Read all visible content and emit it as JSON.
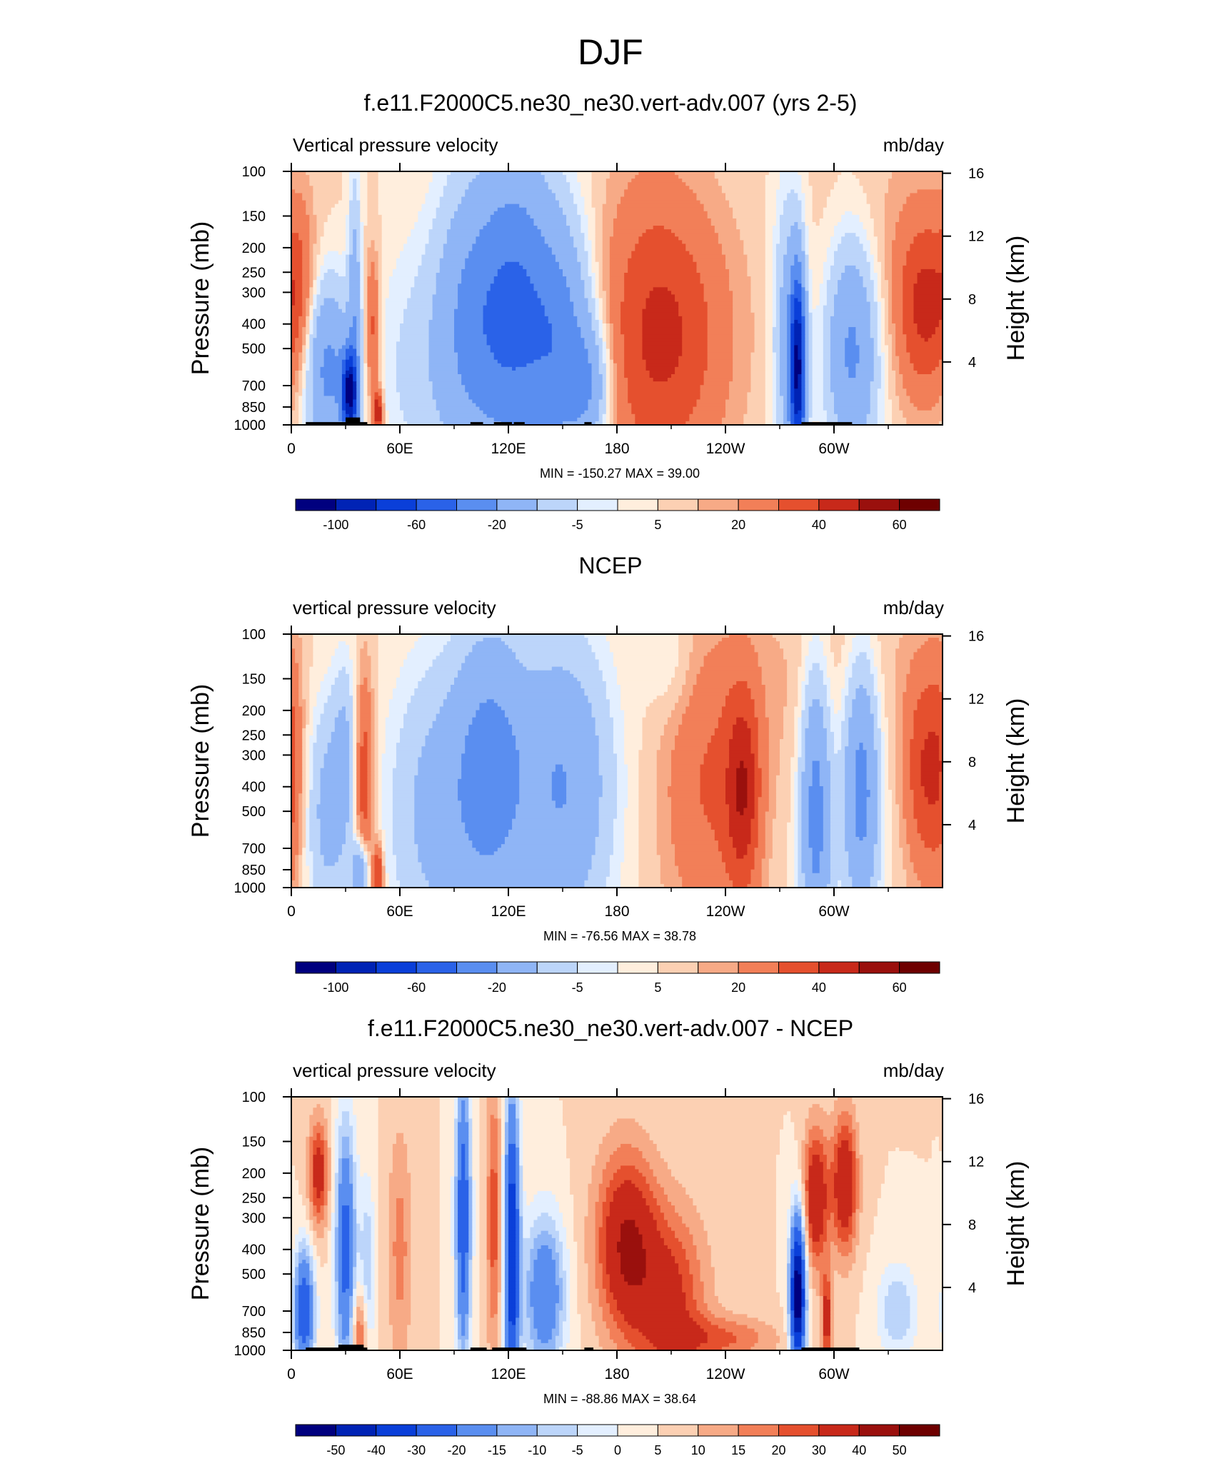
{
  "figure": {
    "title": "DJF",
    "colors": {
      "model_obs_levels": [
        "#00007f",
        "#0023b5",
        "#0a3fd9",
        "#2a62e8",
        "#5a8ef0",
        "#8fb5f6",
        "#bcd5fa",
        "#e3efff",
        "#ffeedd",
        "#fcd0b3",
        "#f7aa86",
        "#f27f58",
        "#e5502e",
        "#c8291a",
        "#9a100d",
        "#6e0000"
      ],
      "diff_levels": [
        "#00007f",
        "#0023b5",
        "#0a3fd9",
        "#2a62e8",
        "#5a8ef0",
        "#8fb5f6",
        "#bcd5fa",
        "#e3efff",
        "#ffeedd",
        "#fcd0b3",
        "#f7aa86",
        "#f27f58",
        "#e5502e",
        "#c8291a",
        "#9a100d",
        "#6e0000"
      ],
      "topography": "#000000"
    }
  },
  "panels": [
    {
      "title": "f.e11.F2000C5.ne30_ne30.vert-adv.007 (yrs 2-5)",
      "left_label": "Vertical pressure velocity",
      "right_label": "mb/day",
      "stats": "MIN = -150.27  MAX =  39.00",
      "colorbar_labels": [
        "-100",
        "-60",
        "-20",
        "-5",
        "5",
        "20",
        "40",
        "60"
      ]
    },
    {
      "title": "NCEP",
      "left_label": "vertical pressure velocity",
      "right_label": "mb/day",
      "stats": "MIN = -76.56  MAX =  38.78",
      "colorbar_labels": [
        "-100",
        "-60",
        "-20",
        "-5",
        "5",
        "20",
        "40",
        "60"
      ]
    },
    {
      "title": "f.e11.F2000C5.ne30_ne30.vert-adv.007 - NCEP",
      "left_label": "vertical pressure velocity",
      "right_label": "mb/day",
      "stats": "MIN = -88.86  MAX =  38.64",
      "colorbar_labels": [
        "-50",
        "-40",
        "-30",
        "-20",
        "-15",
        "-10",
        "-5",
        "0",
        "5",
        "10",
        "15",
        "20",
        "30",
        "40",
        "50"
      ]
    }
  ],
  "chart_data": [
    {
      "type": "heatmap",
      "title": "f.e11.F2000C5.ne30_ne30.vert-adv.007 (yrs 2-5)",
      "subtitle_left": "Vertical pressure velocity",
      "units": "mb/day",
      "xlabel": "",
      "x_ticks": [
        "0",
        "60E",
        "120E",
        "180",
        "120W",
        "60W"
      ],
      "x_tick_values": [
        0,
        60,
        120,
        180,
        240,
        300
      ],
      "xlim": [
        0,
        360
      ],
      "ylabel": "Pressure (mb)",
      "y_ticks": [
        100,
        150,
        200,
        250,
        300,
        400,
        500,
        700,
        850,
        1000
      ],
      "ylim": [
        1000,
        100
      ],
      "y_scale": "log",
      "y2label": "Height (km)",
      "y2_ticks": [
        16,
        12,
        8,
        4
      ],
      "min": -150.27,
      "max": 39.0,
      "levels": [
        -120,
        -100,
        -80,
        -60,
        -40,
        -20,
        -10,
        -5,
        0,
        5,
        10,
        20,
        30,
        40,
        50,
        60
      ],
      "features": [
        {
          "lon": 20,
          "p": 600,
          "v": -45,
          "wl": 9,
          "wp": 0.55
        },
        {
          "lon": 32,
          "p": 750,
          "v": -110,
          "wl": 3,
          "wp": 0.25
        },
        {
          "lon": 35,
          "p": 400,
          "v": -30,
          "wl": 2.5,
          "wp": 0.9
        },
        {
          "lon": 45,
          "p": 420,
          "v": 25,
          "wl": 3,
          "wp": 0.5
        },
        {
          "lon": 48,
          "p": 900,
          "v": 40,
          "wl": 2,
          "wp": 0.15
        },
        {
          "lon": 5,
          "p": 300,
          "v": 15,
          "wl": 6,
          "wp": 0.6
        },
        {
          "lon": 70,
          "p": 600,
          "v": -12,
          "wl": 18,
          "wp": 0.8
        },
        {
          "lon": 100,
          "p": 400,
          "v": -40,
          "wl": 14,
          "wp": 0.9
        },
        {
          "lon": 125,
          "p": 350,
          "v": -55,
          "wl": 14,
          "wp": 1.0
        },
        {
          "lon": 150,
          "p": 500,
          "v": -45,
          "wl": 12,
          "wp": 0.8
        },
        {
          "lon": 165,
          "p": 700,
          "v": -30,
          "wl": 8,
          "wp": 0.4
        },
        {
          "lon": 210,
          "p": 450,
          "v": 25,
          "wl": 25,
          "wp": 0.9
        },
        {
          "lon": 195,
          "p": 400,
          "v": 10,
          "wl": 20,
          "wp": 1.2
        },
        {
          "lon": 280,
          "p": 600,
          "v": -110,
          "wl": 3,
          "wp": 0.6
        },
        {
          "lon": 275,
          "p": 450,
          "v": -30,
          "wl": 6,
          "wp": 0.9
        },
        {
          "lon": 310,
          "p": 500,
          "v": -45,
          "wl": 10,
          "wp": 0.7
        },
        {
          "lon": 350,
          "p": 350,
          "v": 30,
          "wl": 11,
          "wp": 0.6
        },
        {
          "lon": 330,
          "p": 200,
          "v": 6,
          "wl": 30,
          "wp": 0.8
        }
      ]
    },
    {
      "type": "heatmap",
      "title": "NCEP",
      "subtitle_left": "vertical pressure velocity",
      "units": "mb/day",
      "xlabel": "",
      "x_ticks": [
        "0",
        "60E",
        "120E",
        "180",
        "120W",
        "60W"
      ],
      "x_tick_values": [
        0,
        60,
        120,
        180,
        240,
        300
      ],
      "xlim": [
        0,
        360
      ],
      "ylabel": "Pressure (mb)",
      "y_ticks": [
        100,
        150,
        200,
        250,
        300,
        400,
        500,
        700,
        850,
        1000
      ],
      "ylim": [
        1000,
        100
      ],
      "y_scale": "log",
      "y2label": "Height (km)",
      "y2_ticks": [
        16,
        12,
        8,
        4
      ],
      "min": -76.56,
      "max": 38.78,
      "levels": [
        -120,
        -100,
        -80,
        -60,
        -40,
        -20,
        -10,
        -5,
        0,
        5,
        10,
        20,
        30,
        40,
        50,
        60
      ],
      "features": [
        {
          "lon": 20,
          "p": 500,
          "v": -25,
          "wl": 8,
          "wp": 0.7
        },
        {
          "lon": 30,
          "p": 300,
          "v": -20,
          "wl": 5,
          "wp": 0.6
        },
        {
          "lon": 40,
          "p": 380,
          "v": 30,
          "wl": 4,
          "wp": 0.7
        },
        {
          "lon": 48,
          "p": 900,
          "v": 35,
          "wl": 2,
          "wp": 0.2
        },
        {
          "lon": 38,
          "p": 880,
          "v": -45,
          "wl": 3,
          "wp": 0.2
        },
        {
          "lon": 0,
          "p": 350,
          "v": 15,
          "wl": 5,
          "wp": 0.8
        },
        {
          "lon": 80,
          "p": 500,
          "v": -25,
          "wl": 18,
          "wp": 0.9
        },
        {
          "lon": 110,
          "p": 350,
          "v": -45,
          "wl": 14,
          "wp": 0.9
        },
        {
          "lon": 150,
          "p": 400,
          "v": -40,
          "wl": 18,
          "wp": 0.9
        },
        {
          "lon": 230,
          "p": 400,
          "v": 20,
          "wl": 18,
          "wp": 1.0
        },
        {
          "lon": 250,
          "p": 420,
          "v": 30,
          "wl": 7,
          "wp": 0.7
        },
        {
          "lon": 290,
          "p": 500,
          "v": -50,
          "wl": 6,
          "wp": 0.9
        },
        {
          "lon": 315,
          "p": 400,
          "v": -50,
          "wl": 7,
          "wp": 0.8
        },
        {
          "lon": 350,
          "p": 350,
          "v": 28,
          "wl": 8,
          "wp": 0.7
        },
        {
          "lon": 300,
          "p": 150,
          "v": 6,
          "wl": 40,
          "wp": 0.8
        },
        {
          "lon": 210,
          "p": 130,
          "v": -8,
          "wl": 10,
          "wp": 0.4
        }
      ]
    },
    {
      "type": "heatmap",
      "title": "f.e11.F2000C5.ne30_ne30.vert-adv.007 - NCEP",
      "subtitle_left": "vertical pressure velocity",
      "units": "mb/day",
      "xlabel": "",
      "x_ticks": [
        "0",
        "60E",
        "120E",
        "180",
        "120W",
        "60W"
      ],
      "x_tick_values": [
        0,
        60,
        120,
        180,
        240,
        300
      ],
      "xlim": [
        0,
        360
      ],
      "ylabel": "Pressure (mb)",
      "y_ticks": [
        100,
        150,
        200,
        250,
        300,
        400,
        500,
        700,
        850,
        1000
      ],
      "ylim": [
        1000,
        100
      ],
      "y_scale": "log",
      "y2label": "Height (km)",
      "y2_ticks": [
        16,
        12,
        8,
        4
      ],
      "min": -88.86,
      "max": 38.64,
      "levels": [
        -60,
        -50,
        -40,
        -30,
        -20,
        -15,
        -10,
        -5,
        0,
        5,
        10,
        15,
        20,
        30,
        40,
        50
      ],
      "features": [
        {
          "lon": 15,
          "p": 200,
          "v": 25,
          "wl": 4,
          "wp": 0.35
        },
        {
          "lon": 7,
          "p": 700,
          "v": -40,
          "wl": 4,
          "wp": 0.4
        },
        {
          "lon": 30,
          "p": 400,
          "v": -35,
          "wl": 4,
          "wp": 0.8
        },
        {
          "lon": 42,
          "p": 500,
          "v": -15,
          "wl": 3,
          "wp": 0.6
        },
        {
          "lon": 38,
          "p": 850,
          "v": 20,
          "wl": 3,
          "wp": 0.3
        },
        {
          "lon": 60,
          "p": 400,
          "v": 12,
          "wl": 5,
          "wp": 0.8
        },
        {
          "lon": 95,
          "p": 300,
          "v": -40,
          "wl": 3,
          "wp": 0.9
        },
        {
          "lon": 112,
          "p": 300,
          "v": 18,
          "wl": 3,
          "wp": 0.9
        },
        {
          "lon": 122,
          "p": 400,
          "v": -50,
          "wl": 3,
          "wp": 1.0
        },
        {
          "lon": 140,
          "p": 600,
          "v": -30,
          "wl": 8,
          "wp": 0.5
        },
        {
          "lon": 185,
          "p": 380,
          "v": 30,
          "wl": 12,
          "wp": 0.6
        },
        {
          "lon": 210,
          "p": 650,
          "v": 22,
          "wl": 14,
          "wp": 0.6
        },
        {
          "lon": 240,
          "p": 900,
          "v": 15,
          "wl": 20,
          "wp": 0.15
        },
        {
          "lon": 280,
          "p": 600,
          "v": -70,
          "wl": 3,
          "wp": 0.5
        },
        {
          "lon": 290,
          "p": 250,
          "v": 30,
          "wl": 5,
          "wp": 0.45
        },
        {
          "lon": 306,
          "p": 220,
          "v": 30,
          "wl": 5,
          "wp": 0.45
        },
        {
          "lon": 296,
          "p": 750,
          "v": 25,
          "wl": 2,
          "wp": 0.3
        },
        {
          "lon": 335,
          "p": 700,
          "v": -15,
          "wl": 8,
          "wp": 0.3
        }
      ]
    }
  ]
}
